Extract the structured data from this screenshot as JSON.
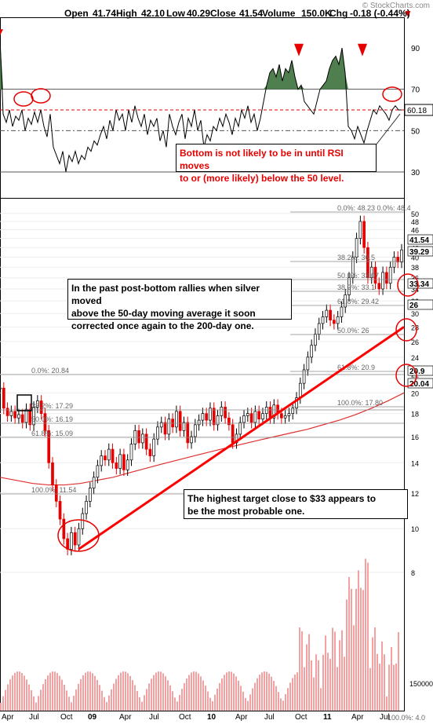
{
  "header": {
    "open_label": "Open",
    "open": "41.74",
    "high_label": "High",
    "high": "42.10",
    "low_label": "Low",
    "low": "40.29",
    "close_label": "Close",
    "close": "41.54",
    "volume_label": "Volume",
    "volume": "150.0K",
    "chg_label": "Chg",
    "chg": "-0.18 (-0.44%)",
    "chg_arrow": "▼"
  },
  "credit": "© StockCharts.com",
  "annotations": {
    "rsi_note_line1": "Bottom is not likely to be in until RSI moves",
    "rsi_note_line2": "to or (more likely) below the 50 level.",
    "rally_note_line1": "In the past post-bottom rallies when silver moved",
    "rally_note_line2": "above the 50-day moving average it soon",
    "rally_note_line3": "corrected once again to the 200-day one.",
    "target_note_line1": "The highest target close to $33 appears to",
    "target_note_line2": "be the most probable one."
  },
  "colors": {
    "price_up": "#000000",
    "price_down": "#e60000",
    "ma50": "#2f8f2f",
    "ma200_blue": "#1f3fbf",
    "ma200_red": "#e03030",
    "trend_line": "#ff0000",
    "rsi_fill": "#4f7f4f",
    "volume_bar": "#f4a0a0"
  },
  "chart_data": [
    {
      "type": "line",
      "name_hint": "rsi",
      "yaxis_ticks": [
        30,
        50,
        70,
        90
      ],
      "reference_lines": [
        30,
        50,
        60,
        70
      ],
      "last_value_label": "60.18",
      "ylim": [
        22,
        98
      ],
      "x": [
        0,
        4,
        8,
        12,
        16,
        20,
        24,
        28,
        32,
        36,
        40,
        44,
        48,
        52,
        56,
        60,
        64,
        68,
        72,
        76,
        80,
        84,
        88,
        92,
        96,
        100,
        104,
        108,
        112,
        116,
        120,
        124,
        128,
        132,
        136,
        140,
        144,
        148,
        152,
        156,
        160,
        164,
        168,
        172,
        176,
        180,
        184,
        188,
        192,
        196,
        200,
        204,
        208,
        212,
        216,
        220,
        224,
        228,
        232,
        236,
        240,
        244,
        248,
        252,
        256,
        260,
        264,
        268,
        272,
        276,
        280,
        284,
        288,
        292,
        296,
        300,
        304,
        308,
        312,
        316,
        320,
        324,
        328,
        332,
        336,
        340,
        344,
        348,
        352,
        356,
        360,
        364,
        368,
        372,
        376,
        380,
        384,
        388,
        392,
        396,
        400,
        404,
        408,
        412,
        416,
        420,
        424,
        428,
        432,
        436,
        440,
        444,
        448,
        452,
        456,
        460,
        464,
        468,
        472,
        476,
        480,
        484,
        488,
        492,
        496,
        500,
        504,
        508,
        512
      ],
      "values": [
        95,
        58,
        54,
        60,
        52,
        57,
        55,
        60,
        50,
        56,
        53,
        59,
        54,
        60,
        52,
        47,
        58,
        42,
        38,
        34,
        40,
        30,
        38,
        35,
        40,
        34,
        38,
        36,
        42,
        40,
        45,
        43,
        48,
        52,
        46,
        55,
        50,
        60,
        55,
        58,
        50,
        60,
        54,
        62,
        56,
        52,
        58,
        48,
        55,
        52,
        56,
        45,
        50,
        42,
        58,
        52,
        48,
        54,
        58,
        46,
        56,
        52,
        60,
        50,
        55,
        42,
        48,
        45,
        52,
        50,
        56,
        52,
        58,
        54,
        48,
        56,
        52,
        60,
        56,
        62,
        54,
        58,
        50,
        56,
        64,
        72,
        78,
        80,
        76,
        82,
        74,
        80,
        78,
        84,
        76,
        70,
        72,
        64,
        62,
        60,
        58,
        64,
        70,
        72,
        74,
        80,
        84,
        86,
        82,
        90,
        78,
        52,
        50,
        46,
        52,
        48,
        44,
        50,
        55,
        60,
        58,
        62,
        60,
        58,
        55,
        60,
        62,
        60,
        60
      ],
      "arrows_x": [
        381,
        462
      ]
    },
    {
      "type": "line",
      "name_hint": "price",
      "ylim_log": [
        7.5,
        52
      ],
      "yaxis_ticks": [
        8,
        10,
        12,
        14,
        16,
        18,
        20,
        22,
        24,
        26,
        28,
        30,
        32,
        34,
        36,
        38,
        40,
        42,
        44,
        46,
        48,
        50
      ],
      "price_labels": [
        "41.54",
        "39.29",
        "33.34",
        "26",
        "20.9",
        "20.04"
      ],
      "x_ticks": [
        "Apr",
        "Jul",
        "Oct",
        "09",
        "Apr",
        "Jul",
        "Oct",
        "10",
        "Apr",
        "Jul",
        "Oct",
        "11",
        "Apr",
        "Jul"
      ],
      "fib_labels": [
        {
          "text": "0.0%: 48.23 0.0%: 48.4"
        },
        {
          "text": "38.2%: 36.5"
        },
        {
          "text": "50.0%: 33.07"
        },
        {
          "text": "38.2%: 33.1"
        },
        {
          "text": "61.8%: 29.42"
        },
        {
          "text": "50.0%: 26"
        },
        {
          "text": "61.8%: 20.9"
        },
        {
          "text": "100.0%: 17.80"
        },
        {
          "text": "0.0%: 20.84"
        },
        {
          "text": "38.2%: 17.29"
        },
        {
          "text": "50.0%: 16.19"
        },
        {
          "text": "61.8%: 15.09"
        },
        {
          "text": "100.0%: 11.54"
        }
      ],
      "close": [
        20.5,
        18.5,
        17.8,
        18.2,
        17.6,
        17.9,
        17.2,
        18.4,
        17.0,
        18.6,
        19.2,
        18.0,
        16.5,
        14.0,
        12.5,
        11.5,
        10.5,
        9.5,
        9.0,
        9.8,
        9.2,
        10.0,
        10.8,
        11.5,
        12.3,
        13.0,
        13.8,
        14.5,
        14.2,
        15.0,
        14.0,
        13.6,
        14.6,
        13.5,
        14.2,
        15.4,
        16.5,
        15.5,
        16.2,
        15.0,
        14.5,
        15.8,
        16.8,
        17.2,
        16.2,
        17.5,
        16.8,
        18.2,
        16.5,
        17.2,
        15.5,
        16.0,
        17.0,
        17.4,
        18.0,
        17.4,
        18.5,
        17.0,
        17.8,
        18.6,
        17.6,
        17.0,
        15.5,
        16.2,
        17.2,
        17.8,
        18.0,
        17.2,
        18.2,
        17.5,
        18.0,
        18.6,
        17.6,
        18.8,
        18.0,
        17.6,
        17.8,
        18.0,
        18.5,
        19.5,
        21.0,
        22.5,
        24.0,
        25.5,
        27.0,
        28.5,
        29.5,
        30.5,
        29.0,
        28.5,
        29.5,
        31.0,
        33.0,
        36.0,
        40.0,
        44.0,
        48.0,
        42.0,
        36.0,
        38.0,
        35.0,
        34.0,
        37.0,
        35.0,
        38.0,
        40.0,
        39.0,
        41.5
      ],
      "trend_line": {
        "start": 9.0,
        "end": 28.0
      },
      "ma200_red": [
        13.0,
        12.8,
        12.6,
        12.5,
        12.5,
        12.6,
        12.8,
        13.0,
        13.3,
        13.6,
        13.9,
        14.2,
        14.5,
        14.8,
        15.1,
        15.4,
        15.7,
        16.0,
        16.3,
        16.6,
        17.0,
        17.4,
        17.9,
        18.5,
        19.2,
        20.0
      ]
    },
    {
      "type": "bar",
      "name_hint": "volume",
      "yaxis_label": "150000",
      "last_label": "100.0%: 4.0"
    }
  ]
}
